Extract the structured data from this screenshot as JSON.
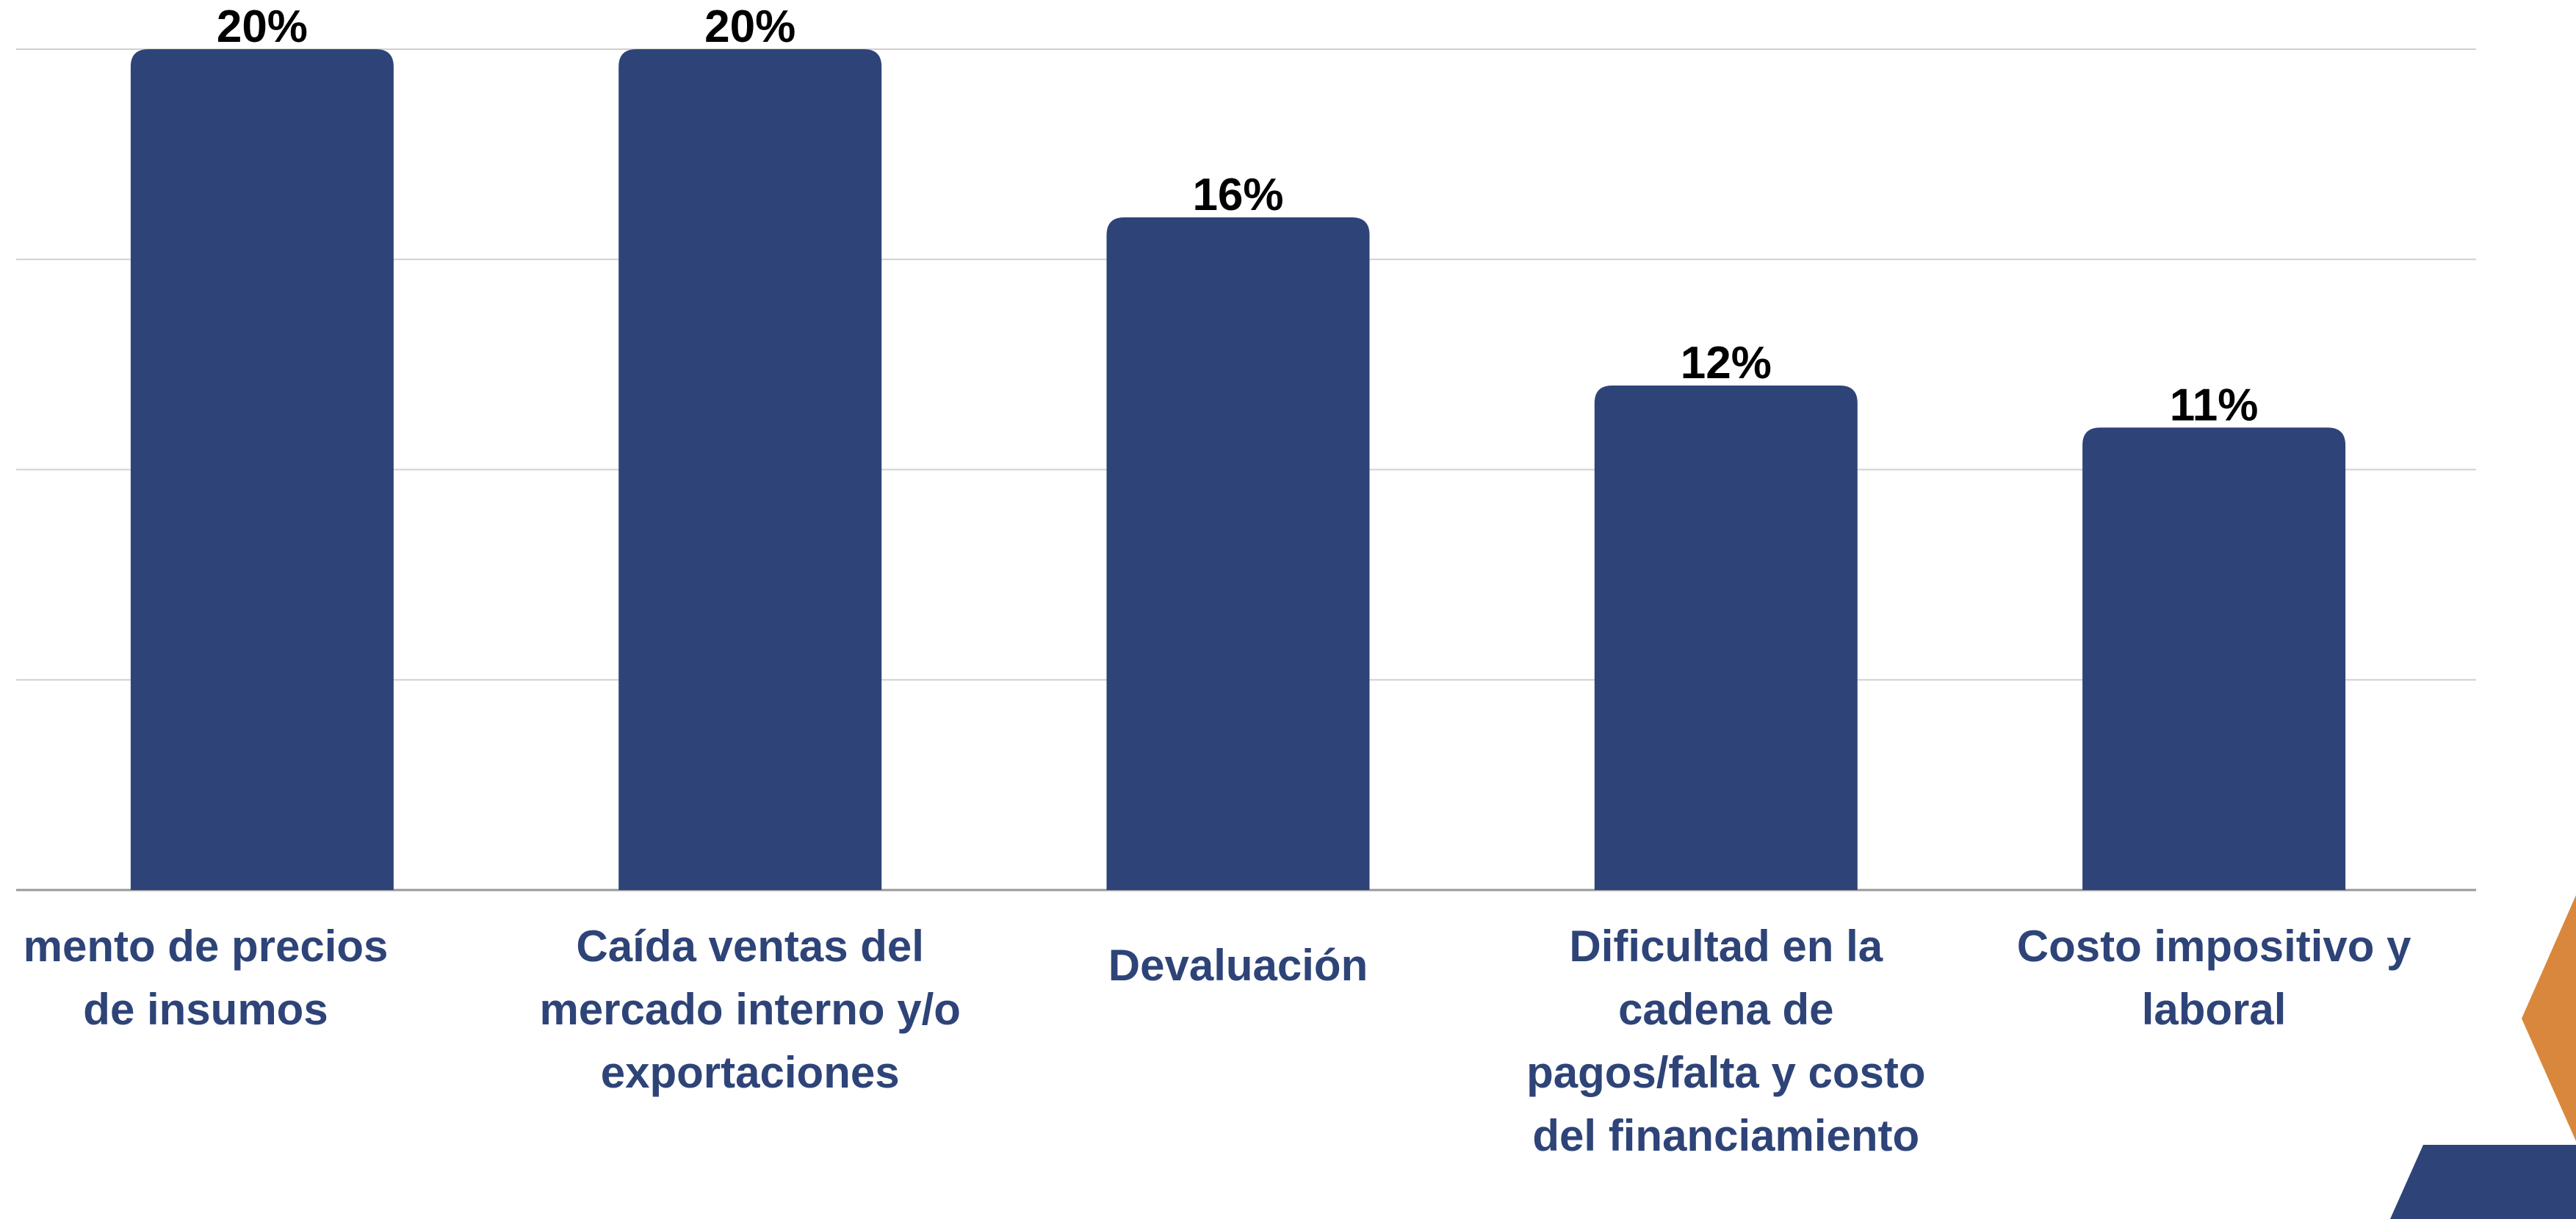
{
  "chart_data": {
    "type": "bar",
    "categories": [
      "mento de precios de insumos",
      "Caída ventas del mercado interno y/o exportaciones",
      "Devaluación",
      "Dificultad en la cadena de pagos/falta y costo del financiamiento",
      "Costo impositivo y laboral"
    ],
    "values": [
      20,
      20,
      16,
      12,
      11
    ],
    "value_labels": [
      "20%",
      "20%",
      "16%",
      "12%",
      "11%"
    ],
    "color": "#2e4478",
    "ylim": [
      0,
      20
    ],
    "yticks": [
      0,
      5,
      10,
      15,
      20
    ],
    "grid": true
  }
}
